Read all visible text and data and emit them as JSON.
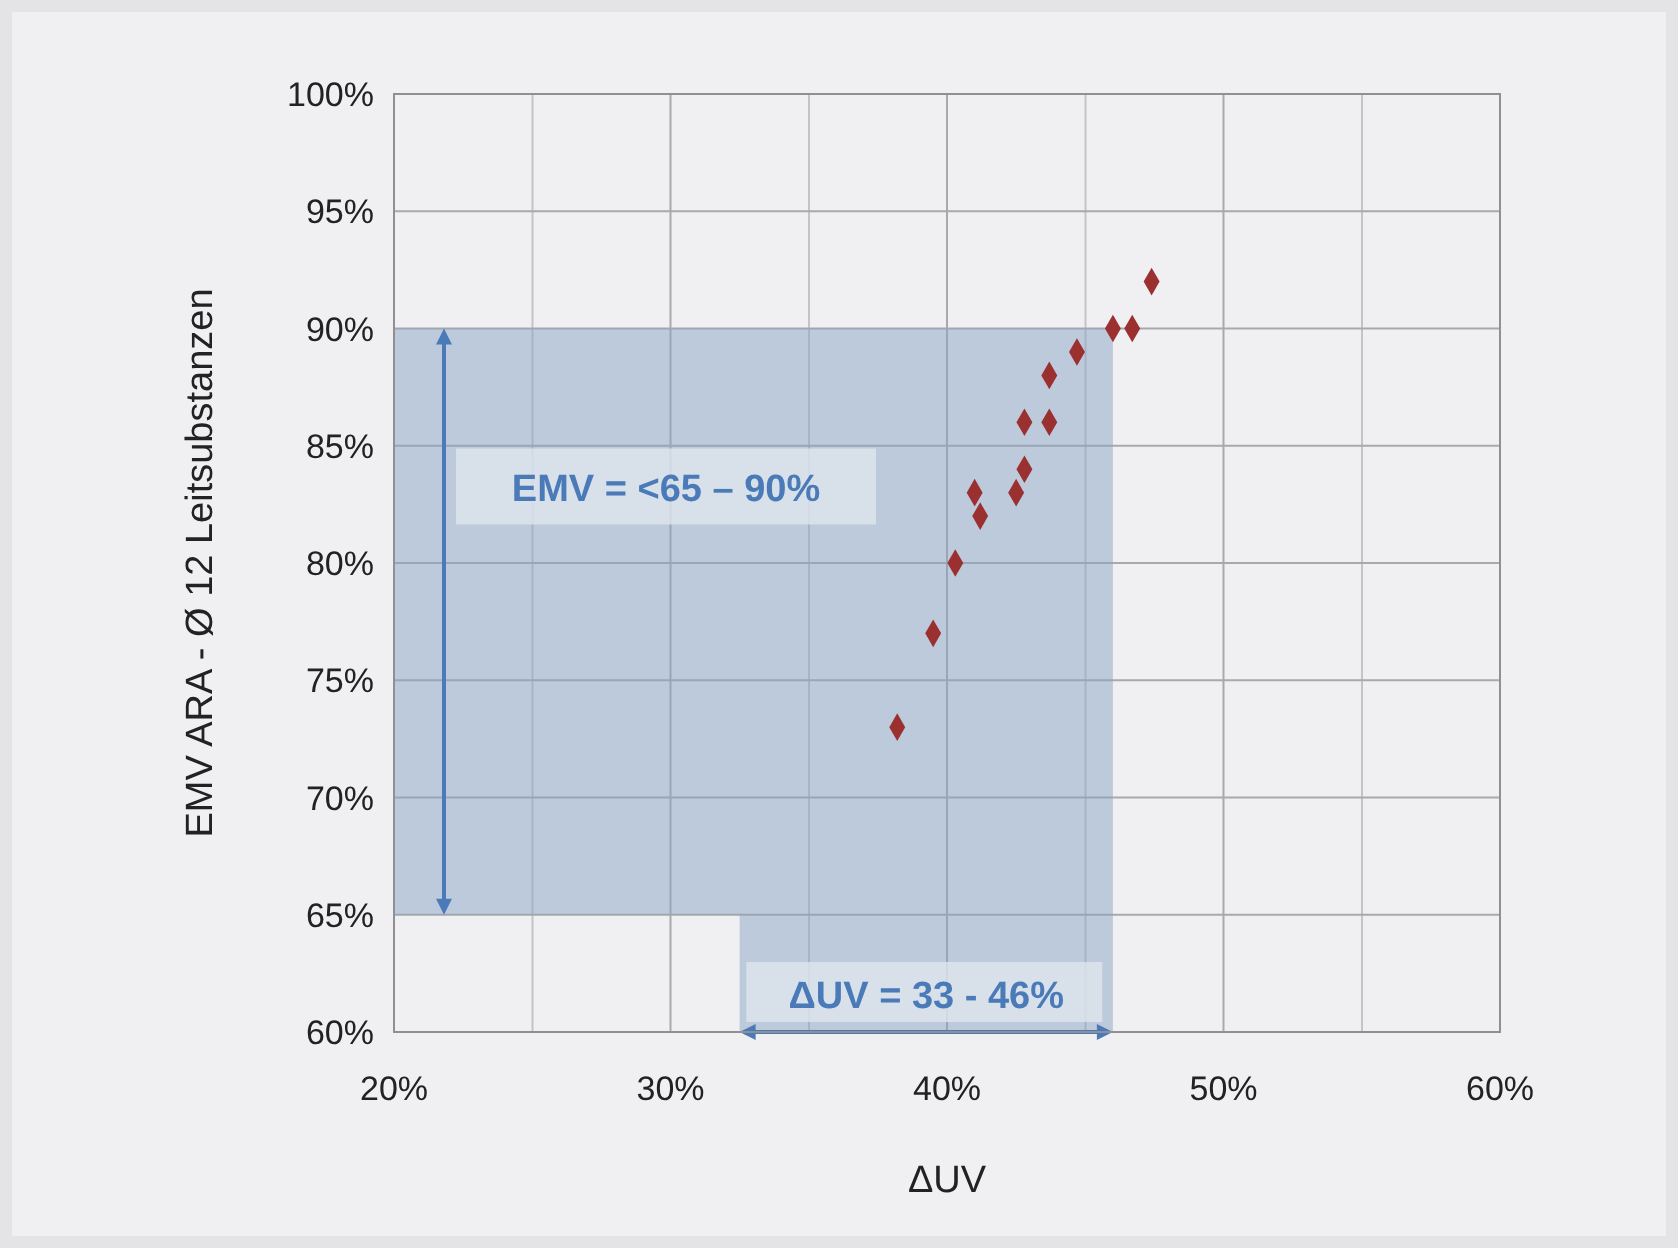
{
  "chart_data": {
    "type": "scatter",
    "xlabel": "ΔUV",
    "ylabel": "EMV ARA - Ø 12 Leitsubstanzen",
    "xlim": [
      20,
      60
    ],
    "xticks": [
      {
        "value": 20,
        "label": "20%"
      },
      {
        "value": 30,
        "label": "30%"
      },
      {
        "value": 40,
        "label": "40%"
      },
      {
        "value": 50,
        "label": "50%"
      },
      {
        "value": 60,
        "label": "60%"
      }
    ],
    "ylim": [
      60,
      100
    ],
    "yticks": [
      {
        "value": 60,
        "label": "60%"
      },
      {
        "value": 65,
        "label": "65%"
      },
      {
        "value": 70,
        "label": "70%"
      },
      {
        "value": 75,
        "label": "75%"
      },
      {
        "value": 80,
        "label": "80%"
      },
      {
        "value": 85,
        "label": "85%"
      },
      {
        "value": 90,
        "label": "90%"
      },
      {
        "value": 95,
        "label": "95%"
      },
      {
        "value": 100,
        "label": "100%"
      }
    ],
    "grid": true,
    "marker": "diamond",
    "bands": [
      {
        "axis": "y",
        "from": 65,
        "to": 90,
        "label": "EMV = <65 – 90%",
        "color": "#8aa3c4"
      },
      {
        "axis": "x",
        "from": 32.5,
        "to": 46,
        "label": "ΔUV = 33 - 46%",
        "color": "#8aa3c4"
      }
    ],
    "series": [
      {
        "color": "#9b3030",
        "x": [
          38.2,
          39.5,
          40.3,
          41.2,
          41.0,
          42.5,
          42.8,
          42.8,
          43.7,
          43.7,
          44.7,
          46.0,
          46.7,
          47.4
        ],
        "values": [
          73,
          77,
          80,
          82,
          83,
          83,
          84,
          86,
          86,
          88,
          89,
          90,
          90,
          92
        ]
      }
    ]
  }
}
